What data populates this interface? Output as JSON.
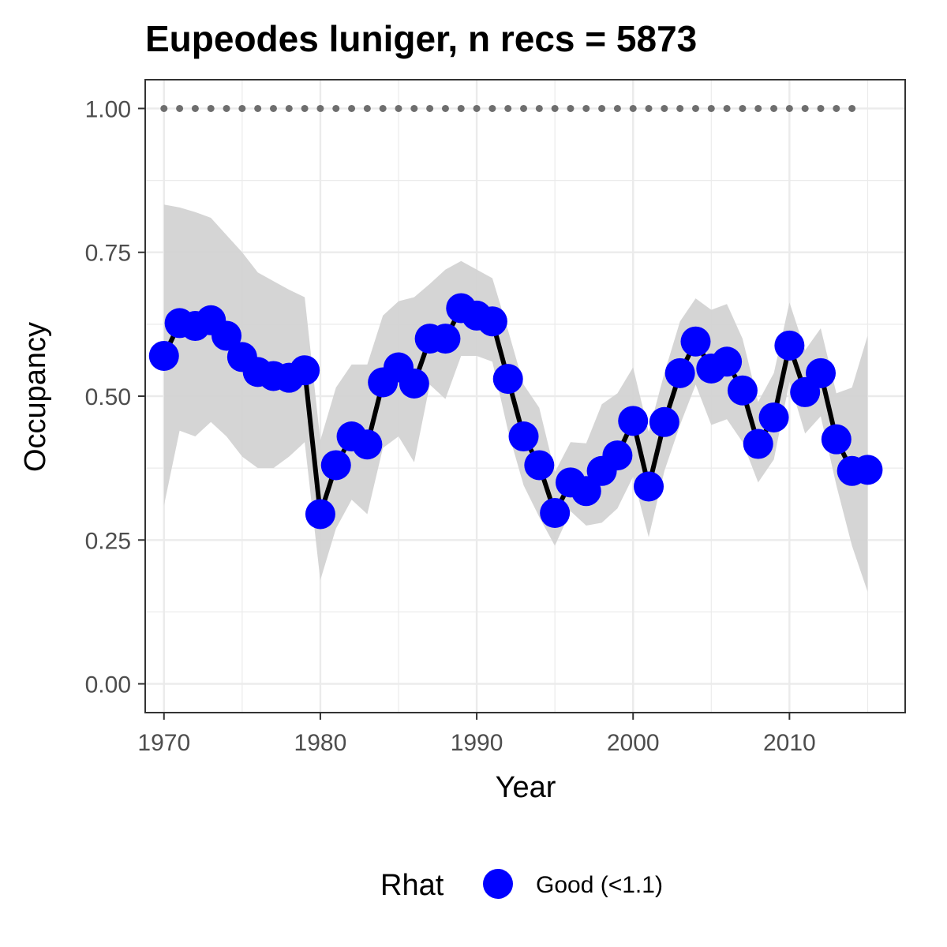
{
  "chart_data": {
    "type": "line",
    "title": "Eupeodes luniger, n recs = 5873",
    "xlabel": "Year",
    "ylabel": "Occupancy",
    "xlim": [
      1968.8,
      2017.4
    ],
    "ylim": [
      -0.05,
      1.05
    ],
    "x_ticks": [
      1970,
      1980,
      1990,
      2000,
      2010
    ],
    "x_tick_labels": [
      "1970",
      "1980",
      "1990",
      "2000",
      "2010"
    ],
    "y_ticks": [
      0,
      0.25,
      0.5,
      0.75,
      1
    ],
    "y_tick_labels": [
      "0.00",
      "0.25",
      "0.50",
      "0.75",
      "1.00"
    ],
    "grid": true,
    "legend": {
      "title": "Rhat",
      "placement": "bottom",
      "entries": [
        {
          "label": "Good (<1.1)",
          "color": "#0000ff"
        }
      ]
    },
    "colors": {
      "points": "#0000ff",
      "line": "#000000",
      "ribbon": "#d3d3d3",
      "reference": "#6e6e6e",
      "grid": "#ebebeb",
      "panel_border": "#333333"
    },
    "reference_points": {
      "x_start": 1970,
      "x_end": 2014,
      "y": 1.0
    },
    "series": [
      {
        "name": "Good (<1.1)",
        "x": [
          1970,
          1971,
          1972,
          1973,
          1974,
          1975,
          1976,
          1977,
          1978,
          1979,
          1980,
          1981,
          1982,
          1983,
          1984,
          1985,
          1986,
          1987,
          1988,
          1989,
          1990,
          1991,
          1992,
          1993,
          1994,
          1995,
          1996,
          1997,
          1998,
          1999,
          2000,
          2001,
          2002,
          2003,
          2004,
          2005,
          2006,
          2007,
          2008,
          2009,
          2010,
          2011,
          2012,
          2013,
          2014,
          2015
        ],
        "y": [
          0.57,
          0.627,
          0.622,
          0.632,
          0.605,
          0.568,
          0.542,
          0.535,
          0.532,
          0.545,
          0.295,
          0.38,
          0.43,
          0.416,
          0.524,
          0.55,
          0.522,
          0.6,
          0.6,
          0.653,
          0.64,
          0.63,
          0.53,
          0.43,
          0.38,
          0.297,
          0.35,
          0.335,
          0.37,
          0.397,
          0.457,
          0.343,
          0.455,
          0.54,
          0.595,
          0.548,
          0.56,
          0.51,
          0.417,
          0.463,
          0.588,
          0.507,
          0.54,
          0.425,
          0.37,
          0.372
        ],
        "lower": [
          0.31,
          0.44,
          0.43,
          0.455,
          0.43,
          0.395,
          0.375,
          0.375,
          0.395,
          0.42,
          0.18,
          0.27,
          0.32,
          0.295,
          0.41,
          0.43,
          0.385,
          0.52,
          0.495,
          0.57,
          0.57,
          0.56,
          0.44,
          0.345,
          0.29,
          0.24,
          0.3,
          0.275,
          0.28,
          0.305,
          0.36,
          0.255,
          0.37,
          0.45,
          0.52,
          0.45,
          0.46,
          0.42,
          0.35,
          0.39,
          0.525,
          0.435,
          0.465,
          0.345,
          0.24,
          0.16
        ],
        "upper": [
          0.833,
          0.828,
          0.82,
          0.81,
          0.78,
          0.75,
          0.715,
          0.7,
          0.685,
          0.672,
          0.423,
          0.515,
          0.555,
          0.555,
          0.64,
          0.665,
          0.672,
          0.695,
          0.72,
          0.735,
          0.72,
          0.705,
          0.615,
          0.52,
          0.48,
          0.368,
          0.42,
          0.418,
          0.486,
          0.505,
          0.55,
          0.438,
          0.54,
          0.63,
          0.67,
          0.65,
          0.66,
          0.6,
          0.49,
          0.54,
          0.663,
          0.58,
          0.618,
          0.505,
          0.515,
          0.605
        ]
      }
    ]
  }
}
